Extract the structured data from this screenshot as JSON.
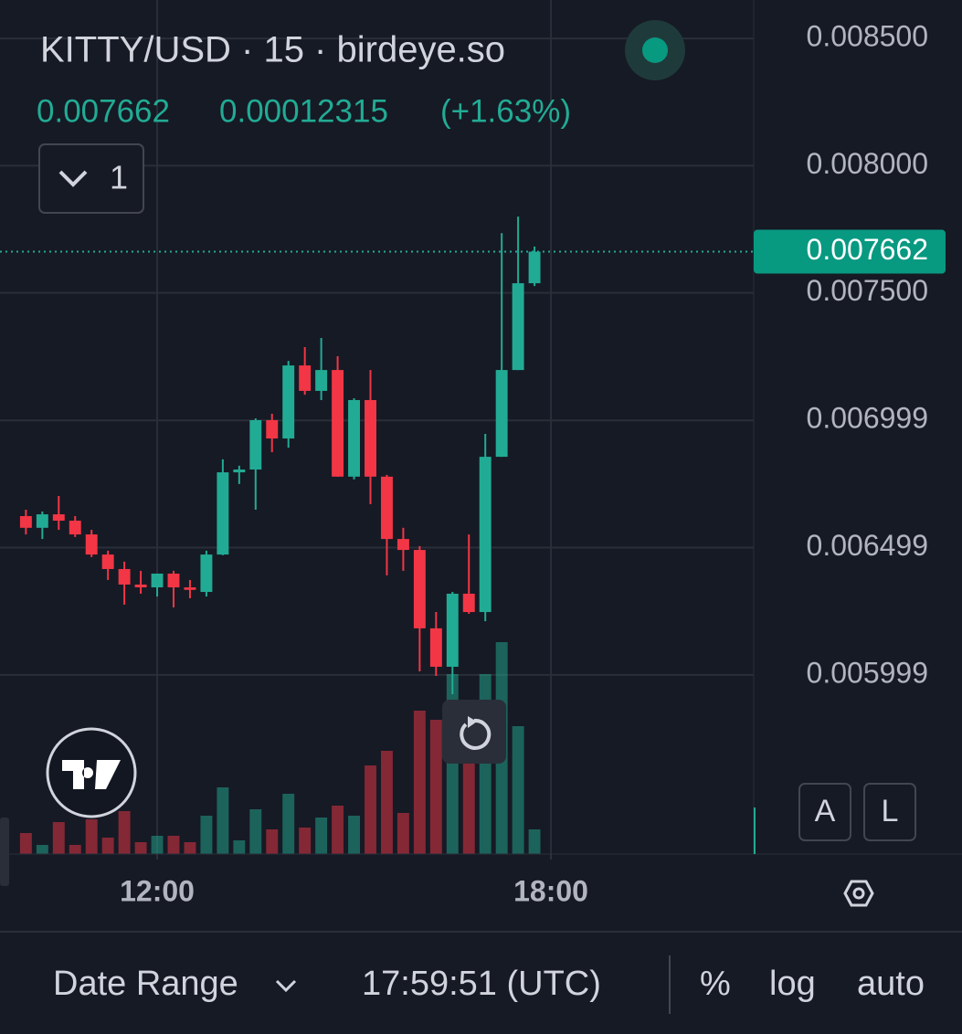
{
  "header": {
    "title": "KITTY/USD · 15 · birdeye.so",
    "legend": [
      "0.007662",
      "0.00012315",
      "(+1.63%)"
    ],
    "collapse_count": "1"
  },
  "chart_data": {
    "type": "candlestick",
    "x": [
      10,
      10.25,
      10.5,
      10.75,
      11,
      11.25,
      11.5,
      11.75,
      12,
      12.25,
      12.5,
      12.75,
      13,
      13.25,
      13.5,
      13.75,
      14,
      14.25,
      14.5,
      14.75,
      15,
      15.25,
      15.5,
      15.75,
      16,
      16.25,
      16.5,
      16.75,
      17,
      17.25,
      17.5,
      17.75
    ],
    "open": [
      0.006623,
      0.006577,
      0.00663,
      0.006605,
      0.006551,
      0.006472,
      0.006415,
      0.006354,
      0.006343,
      0.006397,
      0.006343,
      0.006325,
      0.006472,
      0.006795,
      0.006806,
      0.007,
      0.006928,
      0.007215,
      0.007115,
      0.007197,
      0.006778,
      0.007079,
      0.006778,
      0.006533,
      0.00649,
      0.006182,
      0.006031,
      0.006318,
      0.006246,
      0.006856,
      0.007197,
      0.007538
    ],
    "high": [
      0.006648,
      0.006641,
      0.006702,
      0.006623,
      0.006569,
      0.006487,
      0.006444,
      0.006408,
      0.006397,
      0.006408,
      0.006372,
      0.006487,
      0.006846,
      0.006821,
      0.007007,
      0.007025,
      0.007233,
      0.007287,
      0.007323,
      0.007251,
      0.007086,
      0.007197,
      0.006785,
      0.006577,
      0.006505,
      0.006246,
      0.006325,
      0.006551,
      0.006946,
      0.007735,
      0.0078,
      0.007682
    ],
    "low": [
      0.006551,
      0.006533,
      0.006569,
      0.006541,
      0.006462,
      0.006372,
      0.006275,
      0.006318,
      0.006307,
      0.006264,
      0.0063,
      0.006307,
      0.006469,
      0.006749,
      0.006648,
      0.006874,
      0.006892,
      0.0071,
      0.007079,
      0.006778,
      0.006767,
      0.00667,
      0.00639,
      0.006408,
      0.006013,
      0.005995,
      0.005923,
      0.006239,
      0.00621,
      0.006856,
      0.007197,
      0.007527
    ],
    "close": [
      0.006577,
      0.00663,
      0.006605,
      0.006551,
      0.006472,
      0.006415,
      0.006354,
      0.006343,
      0.006397,
      0.006343,
      0.006333,
      0.006472,
      0.006795,
      0.006806,
      0.007,
      0.006928,
      0.007215,
      0.007115,
      0.007197,
      0.006778,
      0.007079,
      0.006778,
      0.006533,
      0.00649,
      0.006182,
      0.006031,
      0.006318,
      0.006246,
      0.006856,
      0.007197,
      0.007538,
      0.007662
    ],
    "volume": [
      23,
      10,
      35,
      10,
      38,
      18,
      47,
      13,
      20,
      20,
      13,
      42,
      73,
      15,
      49,
      27,
      66,
      29,
      40,
      53,
      42,
      97,
      113,
      45,
      157,
      147,
      197,
      100,
      197,
      232,
      140,
      27
    ],
    "up_color": "#22ab94",
    "down_color": "#f23645",
    "last_price": 0.007662,
    "xlim": [
      9.605,
      21.09
    ],
    "xticks": [
      {
        "value": 12,
        "label": "12:00"
      },
      {
        "value": 18,
        "label": "18:00"
      }
    ],
    "ylim": [
      0.005295,
      0.008651
    ],
    "yticks": [
      {
        "value": 0.0085,
        "label": "0.008500"
      },
      {
        "value": 0.008,
        "label": "0.008000"
      },
      {
        "value": 0.0075,
        "label": "0.007500"
      },
      {
        "value": 0.006999,
        "label": "0.006999"
      },
      {
        "value": 0.006499,
        "label": "0.006499"
      },
      {
        "value": 0.005999,
        "label": "0.005999"
      }
    ],
    "grid": true
  },
  "scale_buttons": [
    "A",
    "L"
  ],
  "toolbar": {
    "date_range": "Date Range",
    "clock": "17:59:51 (UTC)",
    "percent": "%",
    "log": "log",
    "auto": "auto"
  }
}
